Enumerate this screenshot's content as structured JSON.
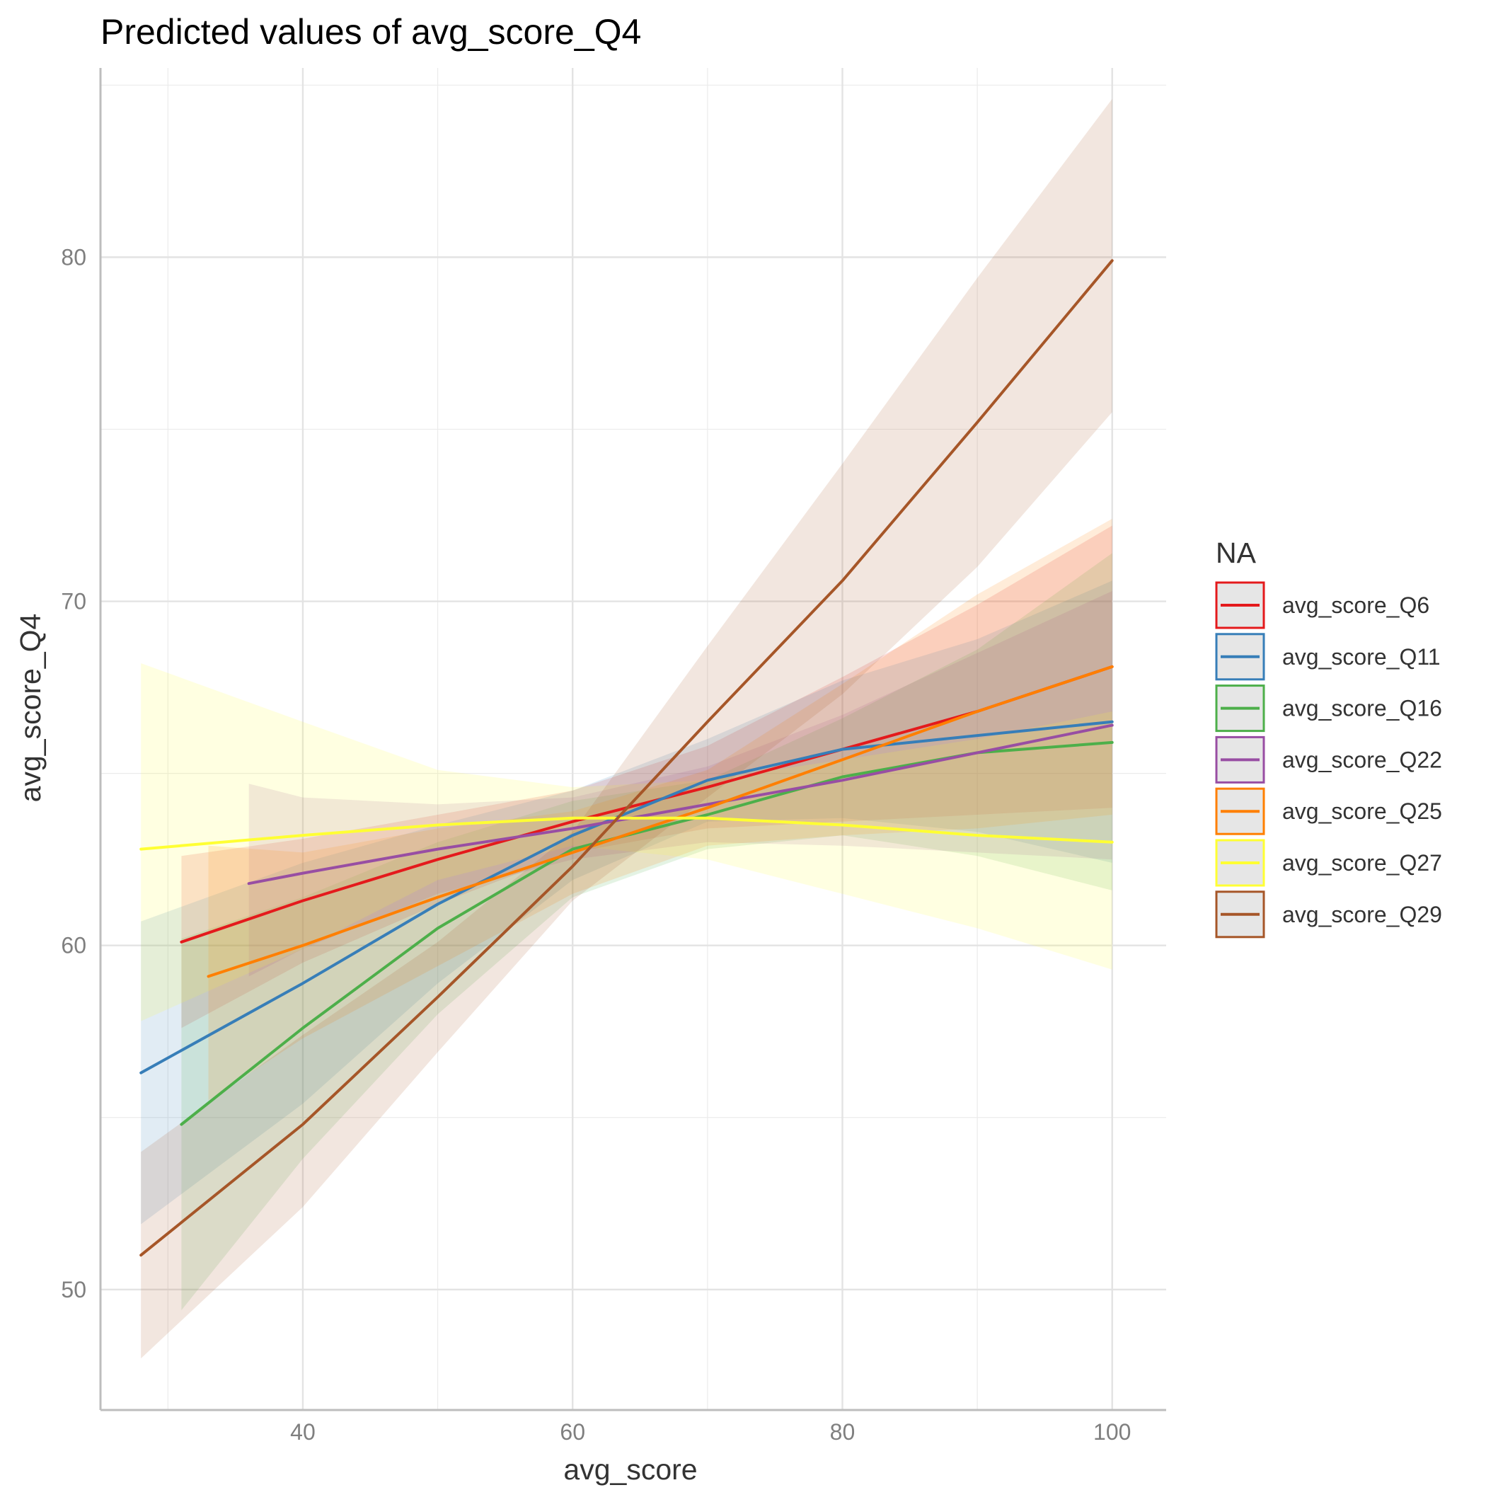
{
  "chart_data": {
    "type": "line",
    "title": "Predicted values of avg_score_Q4",
    "xlabel": "avg_score",
    "ylabel": "avg_score_Q4",
    "xlim": [
      25,
      104
    ],
    "ylim": [
      46.5,
      85.5
    ],
    "x_ticks": [
      40,
      60,
      80,
      100
    ],
    "y_ticks": [
      50,
      60,
      70,
      80
    ],
    "x_minor": [
      30,
      50,
      70,
      90
    ],
    "y_minor": [
      55,
      65,
      75,
      85
    ],
    "grid": true,
    "legend": {
      "title": "NA",
      "position": "right"
    },
    "series": [
      {
        "name": "avg_score_Q6",
        "color": "#E41A1C",
        "x": [
          31,
          40,
          50,
          60,
          70,
          80,
          90,
          100
        ],
        "y": [
          60.1,
          61.3,
          62.5,
          63.6,
          64.6,
          65.7,
          66.8,
          68.1
        ],
        "lower": [
          57.6,
          59.5,
          61.2,
          62.7,
          63.4,
          63.6,
          63.8,
          64.0
        ],
        "upper": [
          62.6,
          63.1,
          63.8,
          64.5,
          65.8,
          67.8,
          69.9,
          72.2
        ]
      },
      {
        "name": "avg_score_Q11",
        "color": "#377EB8",
        "x": [
          28,
          40,
          50,
          60,
          70,
          80,
          90,
          100
        ],
        "y": [
          56.3,
          58.9,
          61.2,
          63.2,
          64.8,
          65.7,
          66.1,
          66.5
        ],
        "lower": [
          51.9,
          55.4,
          58.9,
          61.9,
          63.6,
          63.7,
          63.3,
          62.4
        ],
        "upper": [
          60.7,
          62.4,
          63.5,
          64.5,
          66.0,
          67.7,
          68.9,
          70.6
        ]
      },
      {
        "name": "avg_score_Q16",
        "color": "#4DAF4A",
        "x": [
          31,
          40,
          50,
          60,
          70,
          80,
          90,
          100
        ],
        "y": [
          54.8,
          57.6,
          60.5,
          62.8,
          63.8,
          64.9,
          65.6,
          65.9
        ],
        "lower": [
          49.4,
          53.8,
          58.0,
          61.4,
          62.8,
          63.2,
          62.6,
          61.6
        ],
        "upper": [
          60.2,
          61.4,
          63.0,
          64.2,
          64.8,
          66.6,
          68.6,
          71.4
        ]
      },
      {
        "name": "avg_score_Q22",
        "color": "#984EA3",
        "x": [
          36,
          40,
          50,
          60,
          70,
          80,
          90,
          100
        ],
        "y": [
          61.8,
          62.1,
          62.8,
          63.4,
          64.1,
          64.8,
          65.6,
          66.4
        ],
        "lower": [
          59.1,
          59.9,
          61.5,
          62.5,
          63.0,
          62.9,
          62.7,
          62.5
        ],
        "upper": [
          64.7,
          64.3,
          64.1,
          64.3,
          65.2,
          66.7,
          68.5,
          70.3
        ]
      },
      {
        "name": "avg_score_Q25",
        "color": "#FF7F00",
        "x": [
          33,
          40,
          50,
          60,
          70,
          80,
          90,
          100
        ],
        "y": [
          59.1,
          60.0,
          61.4,
          62.7,
          64.0,
          65.4,
          66.8,
          68.1
        ],
        "lower": [
          55.5,
          57.3,
          59.4,
          61.5,
          62.9,
          63.2,
          63.4,
          63.8
        ],
        "upper": [
          62.9,
          62.7,
          63.4,
          63.9,
          65.1,
          67.6,
          70.2,
          72.4
        ]
      },
      {
        "name": "avg_score_Q27",
        "color": "#FFFF33",
        "x": [
          28,
          40,
          50,
          60,
          70,
          80,
          90,
          100
        ],
        "y": [
          62.8,
          63.2,
          63.5,
          63.7,
          63.7,
          63.5,
          63.2,
          63.0
        ],
        "lower": [
          57.8,
          59.9,
          61.9,
          62.9,
          62.5,
          61.5,
          60.5,
          59.3
        ],
        "upper": [
          68.2,
          66.5,
          65.1,
          64.6,
          64.8,
          65.4,
          66.0,
          66.8
        ]
      },
      {
        "name": "avg_score_Q29",
        "color": "#A65628",
        "x": [
          28,
          40,
          50,
          60,
          70,
          80,
          90,
          100
        ],
        "y": [
          51.0,
          54.8,
          58.5,
          62.3,
          66.5,
          70.6,
          75.2,
          79.9
        ],
        "lower": [
          48.0,
          52.4,
          56.9,
          61.3,
          64.3,
          67.3,
          71.0,
          75.5
        ],
        "upper": [
          54.0,
          57.4,
          60.1,
          63.3,
          68.7,
          74.0,
          79.4,
          84.6
        ]
      }
    ]
  }
}
